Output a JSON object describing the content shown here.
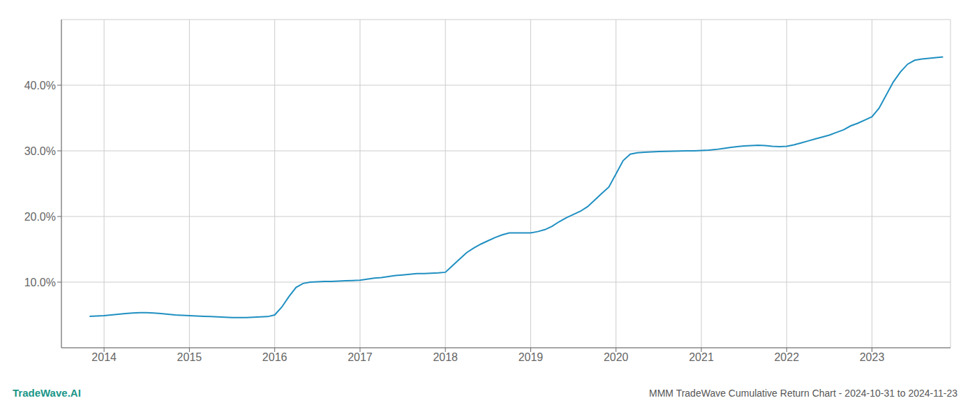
{
  "chart_data": {
    "type": "line",
    "title": "MMM TradeWave Cumulative Return Chart - 2024-10-31 to 2024-11-23",
    "annotations": [
      "TradeWave.AI"
    ],
    "color": "#1f8fc1",
    "grid": true,
    "x": [
      2013.83,
      2014.0,
      2014.083,
      2014.167,
      2014.25,
      2014.333,
      2014.417,
      2014.5,
      2014.583,
      2014.667,
      2014.75,
      2014.833,
      2014.917,
      2015.0,
      2015.083,
      2015.167,
      2015.25,
      2015.333,
      2015.417,
      2015.5,
      2015.583,
      2015.667,
      2015.75,
      2015.833,
      2015.917,
      2016.0,
      2016.083,
      2016.167,
      2016.25,
      2016.333,
      2016.417,
      2016.5,
      2016.583,
      2016.667,
      2016.75,
      2016.833,
      2016.917,
      2017.0,
      2017.083,
      2017.167,
      2017.25,
      2017.333,
      2017.417,
      2017.5,
      2017.583,
      2017.667,
      2017.75,
      2017.833,
      2017.917,
      2018.0,
      2018.083,
      2018.167,
      2018.25,
      2018.333,
      2018.417,
      2018.5,
      2018.583,
      2018.667,
      2018.75,
      2018.833,
      2018.917,
      2019.0,
      2019.083,
      2019.167,
      2019.25,
      2019.333,
      2019.417,
      2019.5,
      2019.583,
      2019.667,
      2019.75,
      2019.833,
      2019.917,
      2020.0,
      2020.083,
      2020.167,
      2020.25,
      2020.333,
      2020.417,
      2020.5,
      2020.583,
      2020.667,
      2020.75,
      2020.833,
      2020.917,
      2021.0,
      2021.083,
      2021.167,
      2021.25,
      2021.333,
      2021.417,
      2021.5,
      2021.583,
      2021.667,
      2021.75,
      2021.833,
      2021.917,
      2022.0,
      2022.083,
      2022.167,
      2022.25,
      2022.333,
      2022.417,
      2022.5,
      2022.583,
      2022.667,
      2022.75,
      2022.833,
      2022.917,
      2023.0,
      2023.083,
      2023.167,
      2023.25,
      2023.333,
      2023.417,
      2023.5,
      2023.583,
      2023.667,
      2023.75,
      2023.833
    ],
    "values": [
      4.8,
      4.9,
      5.0,
      5.1,
      5.2,
      5.3,
      5.35,
      5.35,
      5.3,
      5.2,
      5.1,
      5.0,
      4.95,
      4.9,
      4.85,
      4.8,
      4.75,
      4.7,
      4.65,
      4.6,
      4.6,
      4.6,
      4.65,
      4.7,
      4.75,
      5.0,
      6.2,
      7.8,
      9.2,
      9.8,
      10.0,
      10.05,
      10.1,
      10.1,
      10.15,
      10.2,
      10.25,
      10.3,
      10.45,
      10.6,
      10.7,
      10.85,
      11.0,
      11.1,
      11.2,
      11.3,
      11.3,
      11.35,
      11.4,
      11.5,
      12.5,
      13.5,
      14.5,
      15.2,
      15.8,
      16.3,
      16.8,
      17.2,
      17.5,
      17.5,
      17.5,
      17.5,
      17.7,
      18.0,
      18.5,
      19.2,
      19.8,
      20.3,
      20.8,
      21.5,
      22.5,
      23.5,
      24.5,
      26.5,
      28.5,
      29.5,
      29.7,
      29.8,
      29.85,
      29.9,
      29.92,
      29.95,
      29.97,
      30.0,
      30.0,
      30.05,
      30.1,
      30.2,
      30.35,
      30.5,
      30.65,
      30.75,
      30.8,
      30.85,
      30.8,
      30.7,
      30.65,
      30.7,
      30.9,
      31.2,
      31.5,
      31.8,
      32.1,
      32.4,
      32.8,
      33.2,
      33.8,
      34.2,
      34.7,
      35.2,
      36.5,
      38.5,
      40.5,
      42.0,
      43.2,
      43.8,
      44.0,
      44.1,
      44.2,
      44.3
    ],
    "xlim": [
      2013.5,
      2023.92
    ],
    "xticks": [
      2014,
      2015,
      2016,
      2017,
      2018,
      2019,
      2020,
      2021,
      2022,
      2023
    ],
    "ylim": [
      0,
      50
    ],
    "yticks": [
      {
        "value": 10.0,
        "label": "10.0%"
      },
      {
        "value": 20.0,
        "label": "20.0%"
      },
      {
        "value": 30.0,
        "label": "30.0%"
      },
      {
        "value": 40.0,
        "label": "40.0%"
      }
    ]
  }
}
